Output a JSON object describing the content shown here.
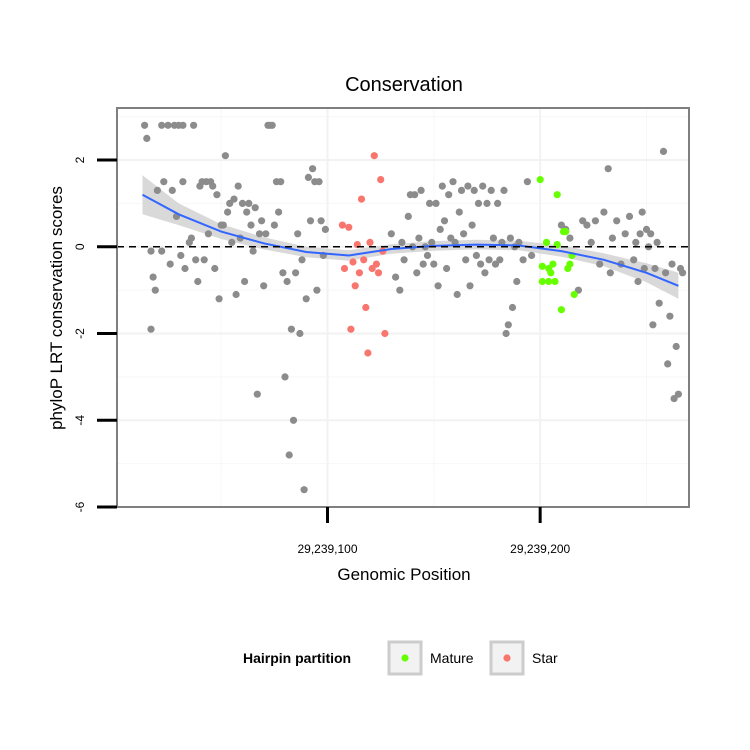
{
  "chart_data": {
    "type": "scatter",
    "title": "Conservation",
    "xlabel": "Genomic Position",
    "ylabel": "phyloP LRT conservation scores",
    "xlim": [
      29239001,
      29239270
    ],
    "ylim": [
      -6,
      3.2
    ],
    "x_ticks": [
      29239100,
      29239200
    ],
    "x_tick_labels": [
      "29,239,100",
      "29,239,200"
    ],
    "y_ticks": [
      -6,
      -4,
      -2,
      0,
      2
    ],
    "y_tick_labels": [
      "-6",
      "-4",
      "-2",
      "0",
      "2"
    ],
    "grid": true,
    "reference_line": {
      "y": 0,
      "style": "dashed"
    },
    "legend": {
      "title": "Hairpin partition",
      "position": "bottom",
      "entries": [
        {
          "label": "Mature",
          "color": "#66ff00"
        },
        {
          "label": "Star",
          "color": "#f8766d"
        }
      ]
    },
    "colors": {
      "other": "#8c8c8c",
      "Mature": "#66ff00",
      "Star": "#f8766d",
      "smooth": "#3366ff",
      "ribbon": "#cccccc"
    },
    "smooth": {
      "x": [
        29239013,
        29239030,
        29239050,
        29239070,
        29239090,
        29239110,
        29239130,
        29239150,
        29239170,
        29239190,
        29239210,
        29239230,
        29239250,
        29239265
      ],
      "y": [
        1.2,
        0.75,
        0.35,
        0.08,
        -0.12,
        -0.2,
        -0.05,
        0.02,
        0.05,
        0.03,
        -0.1,
        -0.3,
        -0.6,
        -0.9
      ],
      "lower": [
        0.75,
        0.5,
        0.18,
        -0.06,
        -0.24,
        -0.32,
        -0.16,
        -0.09,
        -0.06,
        -0.08,
        -0.23,
        -0.45,
        -0.82,
        -1.2
      ],
      "upper": [
        1.65,
        1.0,
        0.52,
        0.22,
        0.0,
        -0.08,
        0.06,
        0.13,
        0.16,
        0.14,
        0.03,
        -0.15,
        -0.38,
        -0.6
      ]
    },
    "series": [
      {
        "name": "Other",
        "points": [
          [
            29239014,
            2.8
          ],
          [
            29239015,
            2.5
          ],
          [
            29239017,
            -0.1
          ],
          [
            29239017,
            -1.9
          ],
          [
            29239018,
            -0.7
          ],
          [
            29239019,
            -1.0
          ],
          [
            29239020,
            1.3
          ],
          [
            29239022,
            2.8
          ],
          [
            29239022,
            -0.1
          ],
          [
            29239023,
            1.5
          ],
          [
            29239025,
            2.8
          ],
          [
            29239026,
            -0.4
          ],
          [
            29239027,
            1.3
          ],
          [
            29239028,
            2.8
          ],
          [
            29239029,
            0.7
          ],
          [
            29239030,
            2.8
          ],
          [
            29239031,
            -0.2
          ],
          [
            29239032,
            2.8
          ],
          [
            29239032,
            1.5
          ],
          [
            29239033,
            -0.5
          ],
          [
            29239035,
            0.1
          ],
          [
            29239036,
            0.2
          ],
          [
            29239037,
            2.8
          ],
          [
            29239038,
            -0.3
          ],
          [
            29239039,
            -0.8
          ],
          [
            29239040,
            1.4
          ],
          [
            29239041,
            1.5
          ],
          [
            29239042,
            -0.3
          ],
          [
            29239043,
            1.5
          ],
          [
            29239044,
            0.3
          ],
          [
            29239045,
            1.5
          ],
          [
            29239046,
            1.4
          ],
          [
            29239047,
            -0.5
          ],
          [
            29239048,
            1.2
          ],
          [
            29239049,
            -1.2
          ],
          [
            29239050,
            0.5
          ],
          [
            29239051,
            0.5
          ],
          [
            29239052,
            2.1
          ],
          [
            29239053,
            0.8
          ],
          [
            29239054,
            1.0
          ],
          [
            29239055,
            0.1
          ],
          [
            29239056,
            1.1
          ],
          [
            29239057,
            -1.1
          ],
          [
            29239058,
            1.4
          ],
          [
            29239059,
            0.2
          ],
          [
            29239060,
            1.0
          ],
          [
            29239061,
            -0.8
          ],
          [
            29239062,
            0.8
          ],
          [
            29239063,
            1.0
          ],
          [
            29239064,
            0.5
          ],
          [
            29239065,
            -0.1
          ],
          [
            29239066,
            0.9
          ],
          [
            29239067,
            -3.4
          ],
          [
            29239068,
            0.3
          ],
          [
            29239069,
            0.6
          ],
          [
            29239070,
            -0.9
          ],
          [
            29239071,
            0.3
          ],
          [
            29239072,
            2.8
          ],
          [
            29239073,
            2.8
          ],
          [
            29239074,
            2.8
          ],
          [
            29239075,
            0.5
          ],
          [
            29239076,
            1.5
          ],
          [
            29239077,
            0.8
          ],
          [
            29239078,
            1.5
          ],
          [
            29239079,
            -0.6
          ],
          [
            29239080,
            -3.0
          ],
          [
            29239081,
            -0.8
          ],
          [
            29239082,
            -4.8
          ],
          [
            29239083,
            -1.9
          ],
          [
            29239084,
            -4.0
          ],
          [
            29239085,
            -0.6
          ],
          [
            29239086,
            0.3
          ],
          [
            29239087,
            -2.0
          ],
          [
            29239088,
            -0.3
          ],
          [
            29239089,
            -5.6
          ],
          [
            29239090,
            -1.2
          ],
          [
            29239091,
            1.6
          ],
          [
            29239092,
            0.6
          ],
          [
            29239093,
            1.8
          ],
          [
            29239094,
            1.5
          ],
          [
            29239095,
            -1.0
          ],
          [
            29239096,
            1.5
          ],
          [
            29239097,
            0.6
          ],
          [
            29239098,
            -0.2
          ],
          [
            29239099,
            0.4
          ],
          [
            29239130,
            0.3
          ],
          [
            29239132,
            -0.7
          ],
          [
            29239134,
            -1.0
          ],
          [
            29239135,
            0.1
          ],
          [
            29239136,
            -0.3
          ],
          [
            29239138,
            0.7
          ],
          [
            29239139,
            1.2
          ],
          [
            29239140,
            0.0
          ],
          [
            29239141,
            1.2
          ],
          [
            29239142,
            -0.6
          ],
          [
            29239143,
            0.2
          ],
          [
            29239144,
            1.3
          ],
          [
            29239145,
            -0.4
          ],
          [
            29239146,
            0.0
          ],
          [
            29239147,
            -0.2
          ],
          [
            29239148,
            1.0
          ],
          [
            29239149,
            0.1
          ],
          [
            29239150,
            -0.4
          ],
          [
            29239151,
            1.0
          ],
          [
            29239152,
            -0.9
          ],
          [
            29239153,
            0.4
          ],
          [
            29239154,
            1.4
          ],
          [
            29239155,
            0.6
          ],
          [
            29239156,
            -0.5
          ],
          [
            29239157,
            1.2
          ],
          [
            29239158,
            0.2
          ],
          [
            29239159,
            1.5
          ],
          [
            29239160,
            0.1
          ],
          [
            29239161,
            -1.1
          ],
          [
            29239162,
            0.8
          ],
          [
            29239163,
            1.3
          ],
          [
            29239164,
            0.3
          ],
          [
            29239165,
            -0.3
          ],
          [
            29239166,
            1.4
          ],
          [
            29239167,
            -0.9
          ],
          [
            29239168,
            0.5
          ],
          [
            29239169,
            1.3
          ],
          [
            29239170,
            -0.2
          ],
          [
            29239171,
            1.0
          ],
          [
            29239172,
            -0.4
          ],
          [
            29239173,
            1.4
          ],
          [
            29239174,
            -0.6
          ],
          [
            29239175,
            1.0
          ],
          [
            29239176,
            -0.3
          ],
          [
            29239177,
            1.3
          ],
          [
            29239178,
            0.2
          ],
          [
            29239179,
            -0.4
          ],
          [
            29239180,
            1.0
          ],
          [
            29239181,
            -0.3
          ],
          [
            29239182,
            0.1
          ],
          [
            29239183,
            1.3
          ],
          [
            29239184,
            -2.0
          ],
          [
            29239185,
            -1.8
          ],
          [
            29239186,
            0.2
          ],
          [
            29239187,
            -1.4
          ],
          [
            29239188,
            0.0
          ],
          [
            29239189,
            -0.8
          ],
          [
            29239190,
            0.1
          ],
          [
            29239192,
            -0.3
          ],
          [
            29239194,
            1.5
          ],
          [
            29239196,
            -0.2
          ],
          [
            29239210,
            0.5
          ],
          [
            29239212,
            0.4
          ],
          [
            29239214,
            0.2
          ],
          [
            29239218,
            -1.0
          ],
          [
            29239220,
            0.6
          ],
          [
            29239222,
            0.5
          ],
          [
            29239224,
            0.1
          ],
          [
            29239226,
            0.6
          ],
          [
            29239228,
            -0.4
          ],
          [
            29239230,
            0.8
          ],
          [
            29239232,
            1.8
          ],
          [
            29239233,
            -0.6
          ],
          [
            29239234,
            0.2
          ],
          [
            29239236,
            0.6
          ],
          [
            29239238,
            -0.4
          ],
          [
            29239240,
            0.3
          ],
          [
            29239242,
            0.7
          ],
          [
            29239244,
            -0.3
          ],
          [
            29239245,
            0.1
          ],
          [
            29239246,
            -0.8
          ],
          [
            29239247,
            0.3
          ],
          [
            29239248,
            0.8
          ],
          [
            29239249,
            -0.5
          ],
          [
            29239250,
            0.4
          ],
          [
            29239251,
            0.0
          ],
          [
            29239252,
            0.3
          ],
          [
            29239253,
            -1.8
          ],
          [
            29239254,
            -0.5
          ],
          [
            29239255,
            0.1
          ],
          [
            29239256,
            -1.3
          ],
          [
            29239258,
            2.2
          ],
          [
            29239259,
            -0.6
          ],
          [
            29239260,
            -2.7
          ],
          [
            29239261,
            -1.6
          ],
          [
            29239262,
            -0.4
          ],
          [
            29239263,
            -3.5
          ],
          [
            29239264,
            -2.3
          ],
          [
            29239265,
            -3.4
          ],
          [
            29239266,
            -0.5
          ],
          [
            29239267,
            -0.6
          ]
        ]
      },
      {
        "name": "Mature",
        "points": [
          [
            29239200,
            1.55
          ],
          [
            29239201,
            -0.45
          ],
          [
            29239201,
            -0.8
          ],
          [
            29239203,
            0.1
          ],
          [
            29239204,
            -0.8
          ],
          [
            29239204,
            -0.5
          ],
          [
            29239205,
            -0.6
          ],
          [
            29239206,
            -0.4
          ],
          [
            29239207,
            -0.8
          ],
          [
            29239208,
            1.2
          ],
          [
            29239208,
            0.05
          ],
          [
            29239210,
            -1.45
          ],
          [
            29239211,
            0.35
          ],
          [
            29239212,
            0.35
          ],
          [
            29239213,
            -0.5
          ],
          [
            29239214,
            -0.4
          ],
          [
            29239215,
            -0.2
          ],
          [
            29239216,
            -1.1
          ]
        ]
      },
      {
        "name": "Star",
        "points": [
          [
            29239107,
            0.5
          ],
          [
            29239108,
            -0.5
          ],
          [
            29239110,
            0.45
          ],
          [
            29239111,
            -1.9
          ],
          [
            29239112,
            -0.35
          ],
          [
            29239113,
            -0.9
          ],
          [
            29239114,
            0.05
          ],
          [
            29239115,
            -0.6
          ],
          [
            29239116,
            1.1
          ],
          [
            29239117,
            -0.3
          ],
          [
            29239118,
            -1.4
          ],
          [
            29239119,
            -2.45
          ],
          [
            29239120,
            0.1
          ],
          [
            29239121,
            -0.5
          ],
          [
            29239122,
            2.1
          ],
          [
            29239123,
            -0.4
          ],
          [
            29239124,
            -0.6
          ],
          [
            29239125,
            1.55
          ],
          [
            29239126,
            -0.1
          ],
          [
            29239127,
            -2.0
          ]
        ]
      }
    ]
  }
}
